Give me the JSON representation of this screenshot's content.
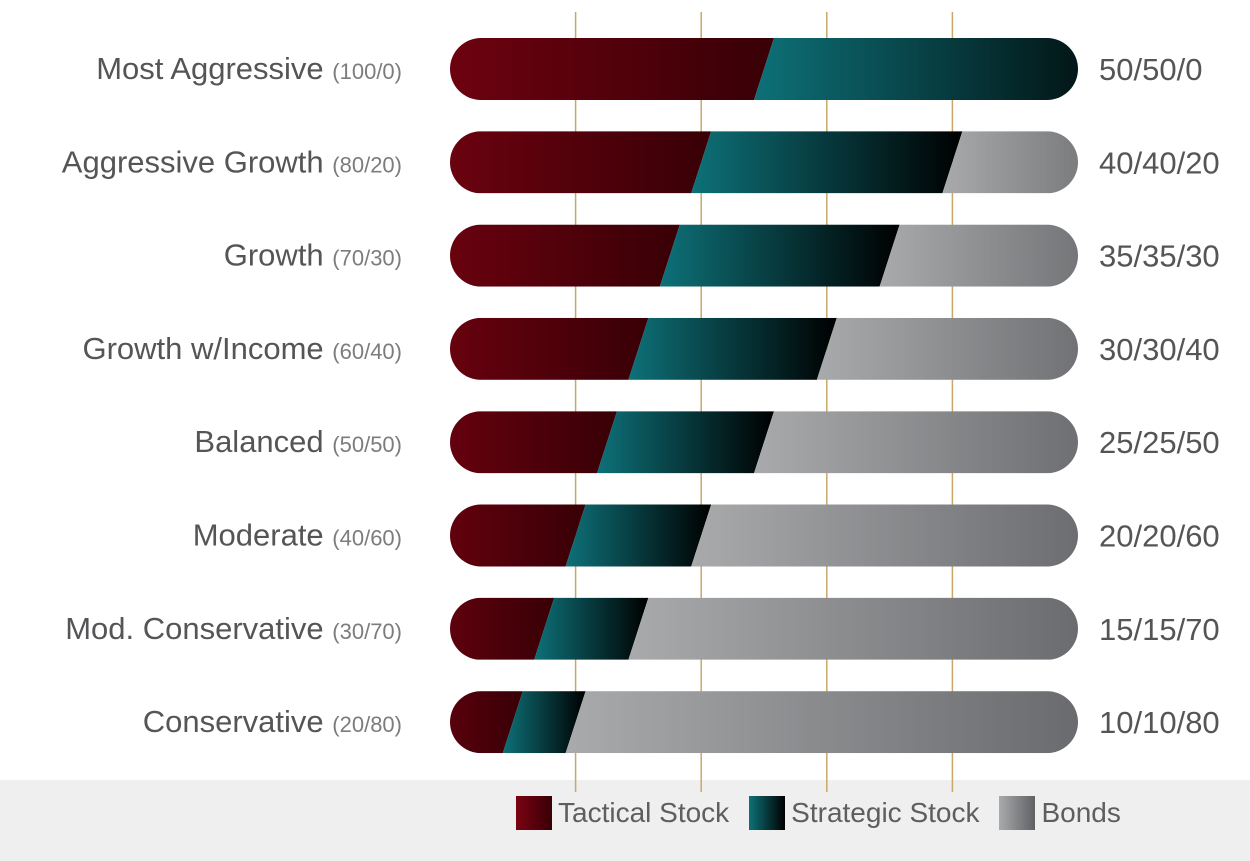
{
  "chart_data": {
    "type": "bar",
    "orientation": "horizontal",
    "stacked": true,
    "categories": [
      {
        "name": "Most Aggressive",
        "ratio": "(100/0)",
        "allocation": "50/50/0"
      },
      {
        "name": "Aggressive Growth",
        "ratio": "(80/20)",
        "allocation": "40/40/20"
      },
      {
        "name": "Growth",
        "ratio": "(70/30)",
        "allocation": "35/35/30"
      },
      {
        "name": "Growth w/Income",
        "ratio": "(60/40)",
        "allocation": "30/30/40"
      },
      {
        "name": "Balanced",
        "ratio": "(50/50)",
        "allocation": "25/25/50"
      },
      {
        "name": "Moderate",
        "ratio": "(40/60)",
        "allocation": "20/20/60"
      },
      {
        "name": "Mod. Conservative",
        "ratio": "(30/70)",
        "allocation": "15/15/70"
      },
      {
        "name": "Conservative",
        "ratio": "(20/80)",
        "allocation": "10/10/80"
      }
    ],
    "series": [
      {
        "name": "Tactical Stock",
        "values": [
          50,
          40,
          35,
          30,
          25,
          20,
          15,
          10
        ],
        "colors": [
          "#7a0212",
          "#380006"
        ]
      },
      {
        "name": "Strategic Stock",
        "values": [
          50,
          40,
          35,
          30,
          25,
          20,
          15,
          10
        ],
        "colors": [
          "#0d7178",
          "#000000"
        ]
      },
      {
        "name": "Bonds",
        "values": [
          0,
          20,
          30,
          40,
          50,
          60,
          70,
          80
        ],
        "colors": [
          "#a9aaac",
          "#606164"
        ]
      }
    ],
    "xlim": [
      0,
      100
    ],
    "gridline_color": "#c9a867",
    "legend_position": "bottom"
  }
}
